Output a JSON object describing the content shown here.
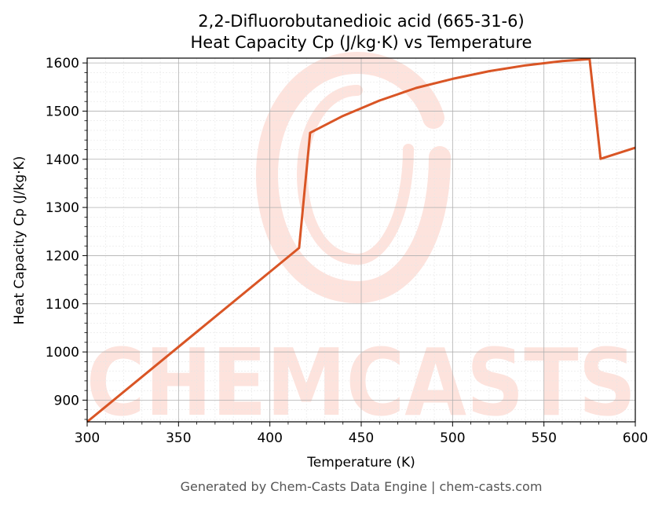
{
  "title_line1": "2,2-Difluorobutanedioic acid (665-31-6)",
  "title_line2": "Heat Capacity Cp (J/kg·K) vs Temperature",
  "footer": "Generated by Chem-Casts Data Engine | chem-casts.com",
  "watermark": "CHEMCASTS",
  "colors": {
    "line": "#d95525",
    "watermark": "#fde3dd",
    "grid_major": "#b0b0b0",
    "grid_minor": "#e6e6e6"
  },
  "chart_data": {
    "type": "line",
    "xlabel": "Temperature (K)",
    "ylabel": "Heat Capacity Cp (J/kg·K)",
    "xlim": [
      300,
      600
    ],
    "ylim": [
      855,
      1610
    ],
    "xticks": [
      300,
      350,
      400,
      450,
      500,
      550,
      600
    ],
    "yticks": [
      900,
      1000,
      1100,
      1200,
      1300,
      1400,
      1500,
      1600
    ],
    "grid": true,
    "series": [
      {
        "color": "#d95525",
        "x": [
          300,
          416,
          422,
          440,
          460,
          480,
          500,
          520,
          540,
          560,
          575,
          581,
          600
        ],
        "y": [
          855,
          1216,
          1455,
          1490,
          1522,
          1548,
          1567,
          1583,
          1595,
          1604,
          1608,
          1401,
          1424
        ]
      }
    ]
  }
}
